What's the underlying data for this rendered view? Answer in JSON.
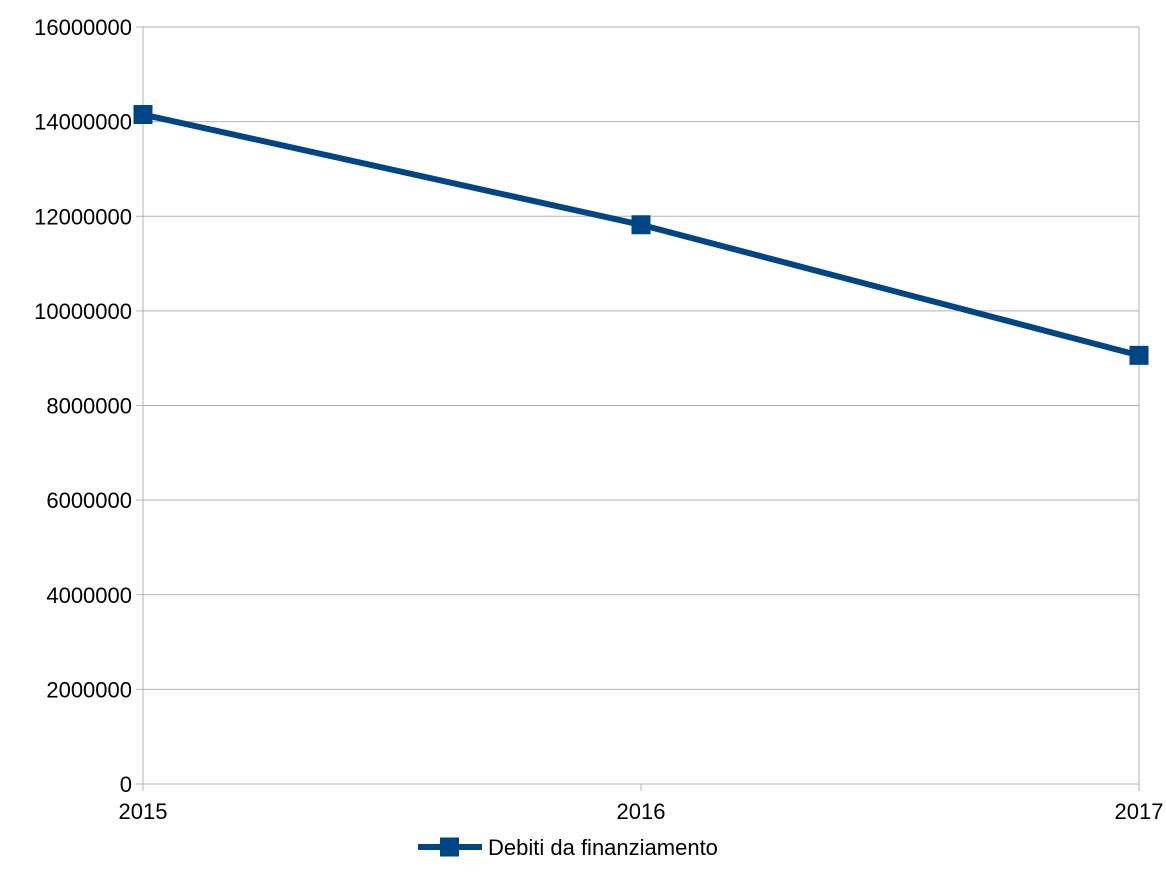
{
  "chart_data": {
    "type": "line",
    "title": "",
    "xlabel": "",
    "ylabel": "",
    "categories": [
      "2015",
      "2016",
      "2017"
    ],
    "series": [
      {
        "name": "Debiti da finanziamento",
        "values": [
          14150000,
          11820000,
          9060000
        ],
        "color": "#004586",
        "marker": "square"
      }
    ],
    "ylim": [
      0,
      16000000
    ],
    "yticks": [
      "0",
      "2000000",
      "4000000",
      "6000000",
      "8000000",
      "10000000",
      "12000000",
      "14000000",
      "16000000"
    ],
    "grid": "horizontal",
    "legend": "bottom"
  }
}
